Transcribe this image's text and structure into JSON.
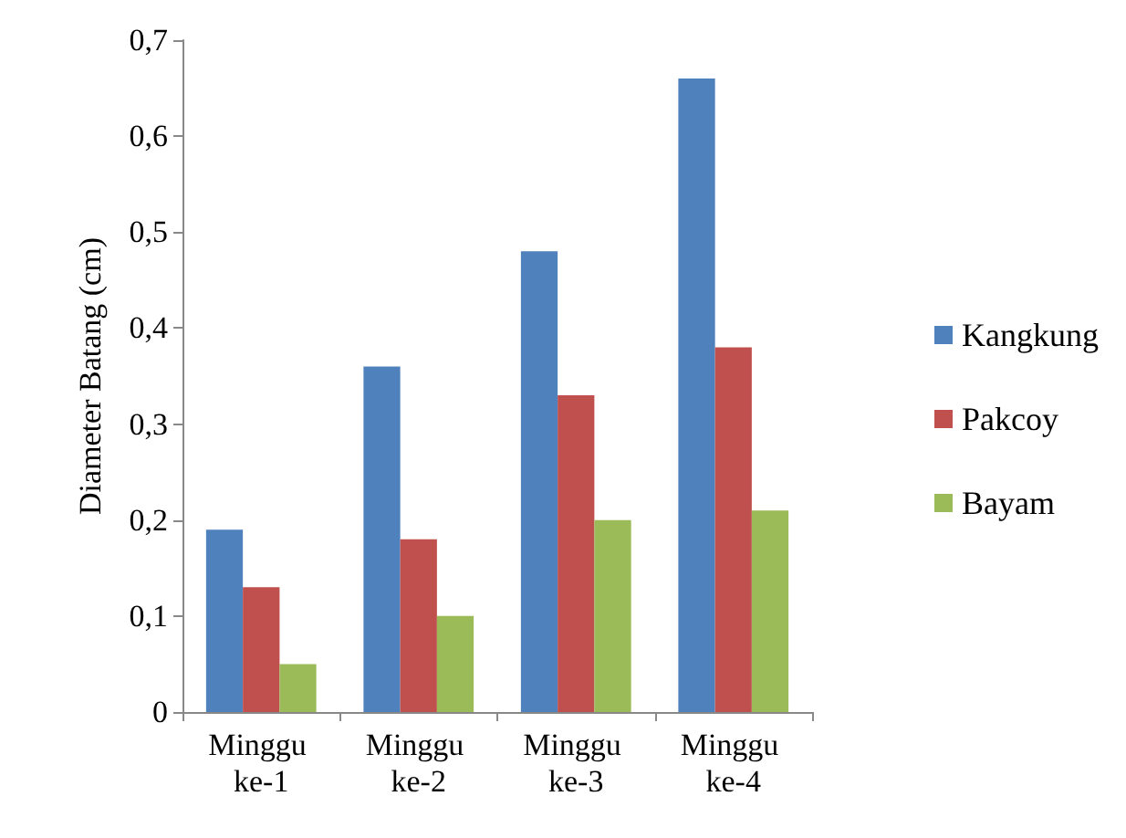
{
  "chart_data": {
    "type": "bar",
    "ylabel": "Diameter Batang (cm)",
    "categories": [
      "Minggu ke-1",
      "Minggu ke-2",
      "Minggu ke-3",
      "Minggu ke-4"
    ],
    "series": [
      {
        "name": "Kangkung",
        "color": "#4f81bd",
        "values": [
          0.19,
          0.36,
          0.48,
          0.66
        ]
      },
      {
        "name": "Pakcoy",
        "color": "#c0504d",
        "values": [
          0.13,
          0.18,
          0.33,
          0.38
        ]
      },
      {
        "name": "Bayam",
        "color": "#9bbb59",
        "values": [
          0.05,
          0.1,
          0.2,
          0.21
        ]
      }
    ],
    "ylim": [
      0,
      0.7
    ],
    "yticks": [
      0,
      {
        "value": 0.1,
        "label": "0,1"
      },
      {
        "value": 0.2,
        "label": "0,2"
      },
      {
        "value": 0.3,
        "label": "0,3"
      },
      {
        "value": 0.4,
        "label": "0,4"
      },
      {
        "value": 0.5,
        "label": "0,5"
      },
      {
        "value": 0.6,
        "label": "0,6"
      },
      {
        "value": 0.7,
        "label": "0,7"
      }
    ],
    "grid": false,
    "legend": "right"
  }
}
